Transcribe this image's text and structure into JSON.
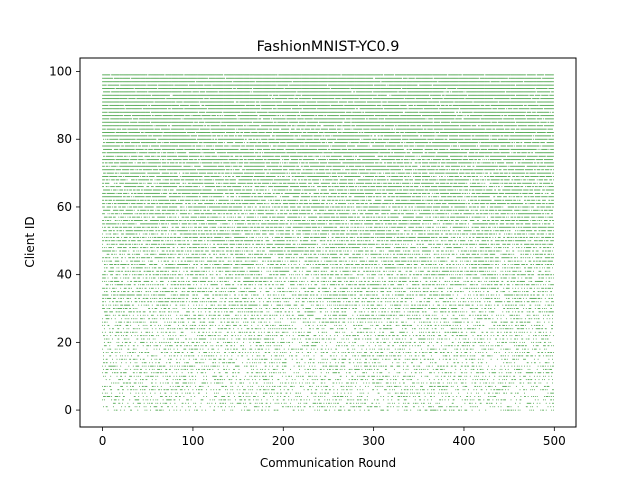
{
  "chart_data": {
    "type": "scatter",
    "title": "FashionMNIST-YC0.9",
    "xlabel": "Communication Round",
    "ylabel": "Client ID",
    "xlim": [
      -25,
      524
    ],
    "ylim": [
      -5,
      104
    ],
    "xticks": [
      0,
      100,
      200,
      300,
      400,
      500
    ],
    "yticks": [
      0,
      20,
      40,
      60,
      80,
      100
    ],
    "x_tick_labels": [
      "0",
      "100",
      "200",
      "300",
      "400",
      "500"
    ],
    "y_tick_labels": [
      "0",
      "20",
      "40",
      "60",
      "80",
      "100"
    ],
    "grid": false,
    "legend": "none",
    "series": [
      {
        "rounds": [
          0,
          499
        ],
        "clients": [
          0,
          99
        ],
        "participation_probability": {
          "client_0": 0.3,
          "client_20": 0.35,
          "client_40": 0.55,
          "client_60": 0.75,
          "client_80": 0.9,
          "client_99": 0.98
        },
        "marker_color": "#008000"
      }
    ]
  }
}
